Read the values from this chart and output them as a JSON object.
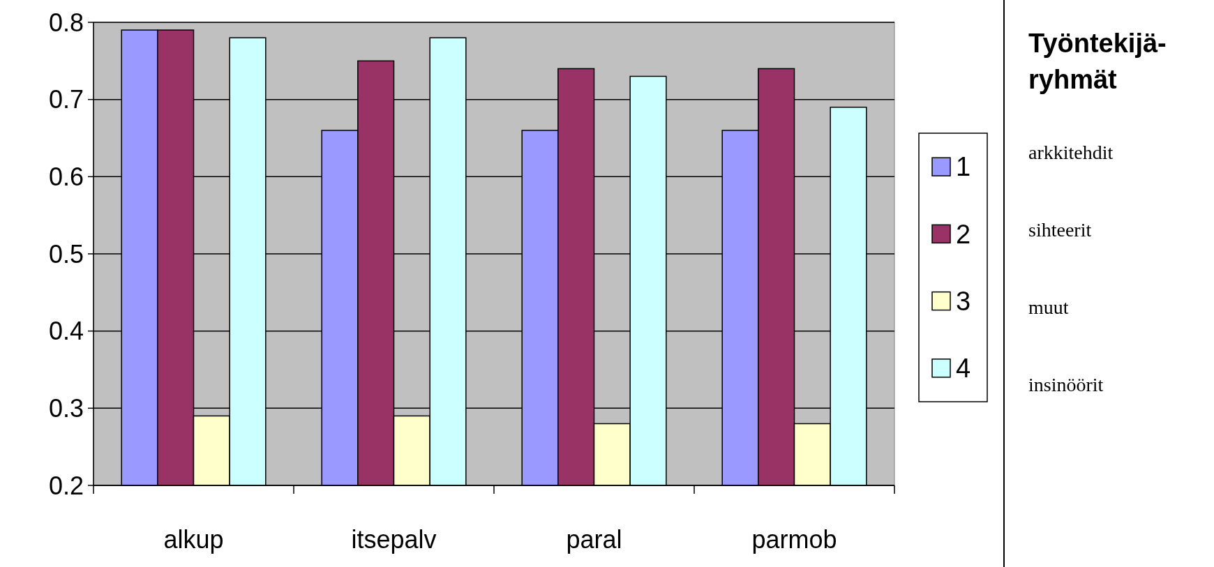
{
  "chart_data": [
    {
      "type": "bar",
      "categories": [
        "alkup",
        "itsepalv",
        "paral",
        "parmob"
      ],
      "series": [
        {
          "name": "1",
          "color": "#9999ff",
          "values": [
            0.79,
            0.66,
            0.66,
            0.66
          ]
        },
        {
          "name": "2",
          "color": "#993366",
          "values": [
            0.79,
            0.75,
            0.74,
            0.74
          ]
        },
        {
          "name": "3",
          "color": "#ffffcc",
          "values": [
            0.29,
            0.29,
            0.28,
            0.28
          ]
        },
        {
          "name": "4",
          "color": "#ccffff",
          "values": [
            0.78,
            0.78,
            0.73,
            0.69
          ]
        }
      ],
      "ylim": [
        0.2,
        0.8
      ],
      "yticks": [
        0.2,
        0.3,
        0.4,
        0.5,
        0.6,
        0.7,
        0.8
      ],
      "grid": "y",
      "legend": "right"
    },
    {
      "type": "other",
      "title": "Työntekijä-ryhmät",
      "annotations": [
        "arkkitehdit",
        "sihteerit",
        "muut",
        "insinöörit"
      ]
    }
  ]
}
